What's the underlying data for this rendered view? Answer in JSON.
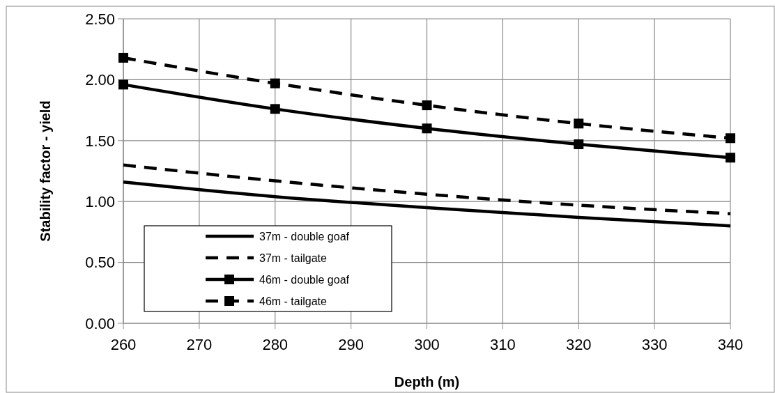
{
  "chart_data": {
    "type": "line",
    "xlabel": "Depth (m)",
    "ylabel": "Stability factor - yield",
    "x": [
      260,
      280,
      300,
      320,
      340
    ],
    "xlim": [
      260,
      340
    ],
    "xticks": [
      260,
      270,
      280,
      290,
      300,
      310,
      320,
      330,
      340
    ],
    "ylim": [
      0,
      2.5
    ],
    "yticks": [
      {
        "value": 0,
        "label": "0.00"
      },
      {
        "value": 0.5,
        "label": "0.50"
      },
      {
        "value": 1,
        "label": "1.00"
      },
      {
        "value": 1.5,
        "label": "1.50"
      },
      {
        "value": 2,
        "label": "2.00"
      },
      {
        "value": 2.5,
        "label": "2.50"
      }
    ],
    "grid": true,
    "legend": "bottom left",
    "series": [
      {
        "name": "37m - double goaf",
        "color": "#000000",
        "values": [
          1.16,
          1.04,
          0.95,
          0.87,
          0.8
        ],
        "line_style": "solid",
        "marker": "none"
      },
      {
        "name": "37m - tailgate",
        "color": "#000000",
        "values": [
          1.3,
          1.17,
          1.06,
          0.97,
          0.9
        ],
        "line_style": "dashed",
        "marker": "none"
      },
      {
        "name": "46m - double goaf",
        "color": "#000000",
        "values": [
          1.96,
          1.76,
          1.6,
          1.47,
          1.36
        ],
        "line_style": "solid",
        "marker": "square"
      },
      {
        "name": "46m - tailgate",
        "color": "#000000",
        "values": [
          2.18,
          1.97,
          1.79,
          1.64,
          1.52
        ],
        "line_style": "dashed",
        "marker": "square"
      }
    ]
  }
}
